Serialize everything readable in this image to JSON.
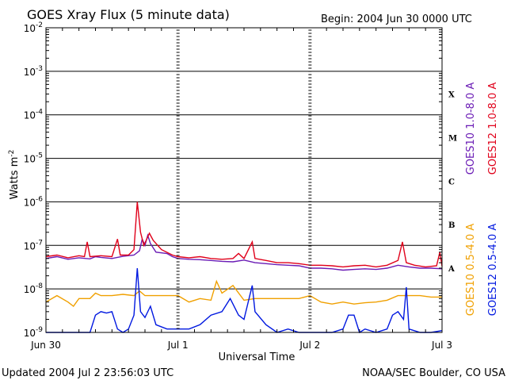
{
  "chart_data": {
    "type": "line",
    "title": "GOES Xray Flux (5 minute data)",
    "begin_label": "Begin:  2004 Jun 30 0000 UTC",
    "xlabel": "Universal Time",
    "ylabel": "Watts m",
    "ylabel_exp": "-2",
    "y_scale": "log",
    "ylim": [
      1e-09,
      0.01
    ],
    "xlim_hours": [
      0,
      72
    ],
    "x_ticks": [
      {
        "hour": 0,
        "label": "Jun 30"
      },
      {
        "hour": 24,
        "label": "Jul 1"
      },
      {
        "hour": 48,
        "label": "Jul 2"
      },
      {
        "hour": 72,
        "label": "Jul 3"
      }
    ],
    "y_ticks": [
      {
        "value": 0.01,
        "base": "10",
        "exp": "-2"
      },
      {
        "value": 0.001,
        "base": "10",
        "exp": "-3"
      },
      {
        "value": 0.0001,
        "base": "10",
        "exp": "-4"
      },
      {
        "value": 1e-05,
        "base": "10",
        "exp": "-5"
      },
      {
        "value": 1e-06,
        "base": "10",
        "exp": "-6"
      },
      {
        "value": 1e-07,
        "base": "10",
        "exp": "-7"
      },
      {
        "value": 1e-08,
        "base": "10",
        "exp": "-8"
      },
      {
        "value": 1e-09,
        "base": "10",
        "exp": "-9"
      }
    ],
    "flare_classes": [
      {
        "label": "X",
        "value": 0.0003
      },
      {
        "label": "M",
        "value": 3e-05
      },
      {
        "label": "C",
        "value": 3e-06
      },
      {
        "label": "B",
        "value": 3e-07
      },
      {
        "label": "A",
        "value": 3e-08
      }
    ],
    "series": [
      {
        "name": "GOES10 1.0-8.0 A",
        "color": "#6a1bb5",
        "points": [
          [
            0,
            5e-08
          ],
          [
            2,
            5.5e-08
          ],
          [
            4,
            4.8e-08
          ],
          [
            6,
            5.2e-08
          ],
          [
            8,
            4.9e-08
          ],
          [
            9,
            5.5e-08
          ],
          [
            10,
            5.3e-08
          ],
          [
            12,
            5e-08
          ],
          [
            14,
            5.6e-08
          ],
          [
            16,
            6e-08
          ],
          [
            17,
            7.5e-08
          ],
          [
            17.5,
            1.4e-07
          ],
          [
            18,
            1e-07
          ],
          [
            18.5,
            1.7e-07
          ],
          [
            19,
            1.1e-07
          ],
          [
            20,
            7e-08
          ],
          [
            22,
            6.5e-08
          ],
          [
            23,
            5.5e-08
          ],
          [
            24,
            5e-08
          ],
          [
            26,
            4.8e-08
          ],
          [
            28,
            4.7e-08
          ],
          [
            30,
            4.5e-08
          ],
          [
            32,
            4.3e-08
          ],
          [
            34,
            4.2e-08
          ],
          [
            36,
            4.6e-08
          ],
          [
            38,
            4e-08
          ],
          [
            40,
            3.8e-08
          ],
          [
            42,
            3.6e-08
          ],
          [
            44,
            3.5e-08
          ],
          [
            46,
            3.4e-08
          ],
          [
            48,
            3e-08
          ],
          [
            50,
            3e-08
          ],
          [
            52,
            2.9e-08
          ],
          [
            54,
            2.7e-08
          ],
          [
            56,
            2.8e-08
          ],
          [
            58,
            2.9e-08
          ],
          [
            60,
            2.8e-08
          ],
          [
            62,
            3e-08
          ],
          [
            64,
            3.5e-08
          ],
          [
            66,
            3.2e-08
          ],
          [
            68,
            3e-08
          ],
          [
            70,
            3e-08
          ],
          [
            72,
            2.9e-08
          ]
        ]
      },
      {
        "name": "GOES12 1.0-8.0 A",
        "color": "#e0001a",
        "points": [
          [
            0,
            5.5e-08
          ],
          [
            2,
            6e-08
          ],
          [
            4,
            5.2e-08
          ],
          [
            6,
            5.8e-08
          ],
          [
            7,
            5.5e-08
          ],
          [
            7.5,
            1.2e-07
          ],
          [
            8,
            5.5e-08
          ],
          [
            10,
            5.8e-08
          ],
          [
            12,
            5.5e-08
          ],
          [
            13,
            1.4e-07
          ],
          [
            13.5,
            6e-08
          ],
          [
            15,
            6e-08
          ],
          [
            16,
            8e-08
          ],
          [
            16.6,
            1e-06
          ],
          [
            17.2,
            2e-07
          ],
          [
            17.8,
            1e-07
          ],
          [
            18.8,
            1.9e-07
          ],
          [
            19.5,
            1.3e-07
          ],
          [
            21,
            8e-08
          ],
          [
            23,
            6e-08
          ],
          [
            24,
            5.5e-08
          ],
          [
            26,
            5.2e-08
          ],
          [
            28,
            5.5e-08
          ],
          [
            30,
            5e-08
          ],
          [
            32,
            4.8e-08
          ],
          [
            34,
            5e-08
          ],
          [
            35,
            6.5e-08
          ],
          [
            36,
            5e-08
          ],
          [
            37.5,
            1.2e-07
          ],
          [
            38,
            5e-08
          ],
          [
            40,
            4.5e-08
          ],
          [
            42,
            4e-08
          ],
          [
            44,
            4e-08
          ],
          [
            46,
            3.8e-08
          ],
          [
            48,
            3.5e-08
          ],
          [
            50,
            3.5e-08
          ],
          [
            52,
            3.4e-08
          ],
          [
            54,
            3.2e-08
          ],
          [
            56,
            3.4e-08
          ],
          [
            58,
            3.5e-08
          ],
          [
            60,
            3.2e-08
          ],
          [
            62,
            3.5e-08
          ],
          [
            64,
            4.5e-08
          ],
          [
            64.8,
            1.2e-07
          ],
          [
            65.5,
            4e-08
          ],
          [
            67,
            3.5e-08
          ],
          [
            69,
            3.2e-08
          ],
          [
            71,
            3.4e-08
          ],
          [
            71.6,
            7e-08
          ],
          [
            72,
            3.3e-08
          ]
        ]
      },
      {
        "name": "GOES10 0.5-4.0 A",
        "color": "#f0a000",
        "points": [
          [
            0,
            5e-09
          ],
          [
            2,
            7e-09
          ],
          [
            4,
            5e-09
          ],
          [
            5,
            4e-09
          ],
          [
            6,
            6e-09
          ],
          [
            8,
            6e-09
          ],
          [
            9,
            8e-09
          ],
          [
            10,
            7e-09
          ],
          [
            12,
            7e-09
          ],
          [
            14,
            7.5e-09
          ],
          [
            16,
            7e-09
          ],
          [
            17,
            9e-09
          ],
          [
            18,
            7e-09
          ],
          [
            20,
            7e-09
          ],
          [
            22,
            7e-09
          ],
          [
            24,
            7e-09
          ],
          [
            26,
            5e-09
          ],
          [
            28,
            6e-09
          ],
          [
            30,
            5.5e-09
          ],
          [
            31,
            1.5e-08
          ],
          [
            32,
            8e-09
          ],
          [
            34,
            1.2e-08
          ],
          [
            36,
            5.5e-09
          ],
          [
            38,
            6e-09
          ],
          [
            40,
            6e-09
          ],
          [
            42,
            6e-09
          ],
          [
            44,
            6e-09
          ],
          [
            46,
            6e-09
          ],
          [
            48,
            7e-09
          ],
          [
            50,
            5e-09
          ],
          [
            52,
            4.5e-09
          ],
          [
            54,
            5e-09
          ],
          [
            56,
            4.5e-09
          ],
          [
            58,
            4.8e-09
          ],
          [
            60,
            5e-09
          ],
          [
            62,
            5.5e-09
          ],
          [
            64,
            7e-09
          ],
          [
            66,
            7e-09
          ],
          [
            68,
            7e-09
          ],
          [
            70,
            6.5e-09
          ],
          [
            72,
            6.5e-09
          ]
        ]
      },
      {
        "name": "GOES12 0.5-4.0 A",
        "color": "#0018e0",
        "points": [
          [
            0,
            1e-09
          ],
          [
            4,
            1e-09
          ],
          [
            6,
            1e-09
          ],
          [
            8,
            1e-09
          ],
          [
            9,
            2.5e-09
          ],
          [
            10,
            3e-09
          ],
          [
            11,
            2.8e-09
          ],
          [
            12,
            3e-09
          ],
          [
            13,
            1.2e-09
          ],
          [
            14,
            1e-09
          ],
          [
            15,
            1.2e-09
          ],
          [
            16,
            2.5e-09
          ],
          [
            16.6,
            3e-08
          ],
          [
            17.2,
            3e-09
          ],
          [
            18,
            2.2e-09
          ],
          [
            19,
            4e-09
          ],
          [
            20,
            1.5e-09
          ],
          [
            22,
            1.2e-09
          ],
          [
            24,
            1.2e-09
          ],
          [
            26,
            1.2e-09
          ],
          [
            28,
            1.5e-09
          ],
          [
            30,
            2.5e-09
          ],
          [
            32,
            3e-09
          ],
          [
            33.5,
            6e-09
          ],
          [
            35,
            2.5e-09
          ],
          [
            36,
            2e-09
          ],
          [
            37.5,
            1.2e-08
          ],
          [
            38,
            3e-09
          ],
          [
            40,
            1.5e-09
          ],
          [
            42,
            1e-09
          ],
          [
            44,
            1.2e-09
          ],
          [
            46,
            1e-09
          ],
          [
            48,
            1e-09
          ],
          [
            50,
            1e-09
          ],
          [
            52,
            1e-09
          ],
          [
            54,
            1.2e-09
          ],
          [
            55,
            2.5e-09
          ],
          [
            56,
            2.5e-09
          ],
          [
            57,
            1e-09
          ],
          [
            58,
            1.2e-09
          ],
          [
            60,
            1e-09
          ],
          [
            62,
            1.2e-09
          ],
          [
            63,
            2.5e-09
          ],
          [
            64,
            3e-09
          ],
          [
            65,
            2e-09
          ],
          [
            65.5,
            1.1e-08
          ],
          [
            66,
            1.2e-09
          ],
          [
            68,
            1e-09
          ],
          [
            70,
            1e-09
          ],
          [
            72,
            1.1e-09
          ]
        ]
      }
    ]
  },
  "footer": {
    "updated": "Updated 2004 Jul  2 23:56:03 UTC",
    "credit": "NOAA/SEC Boulder, CO USA"
  }
}
